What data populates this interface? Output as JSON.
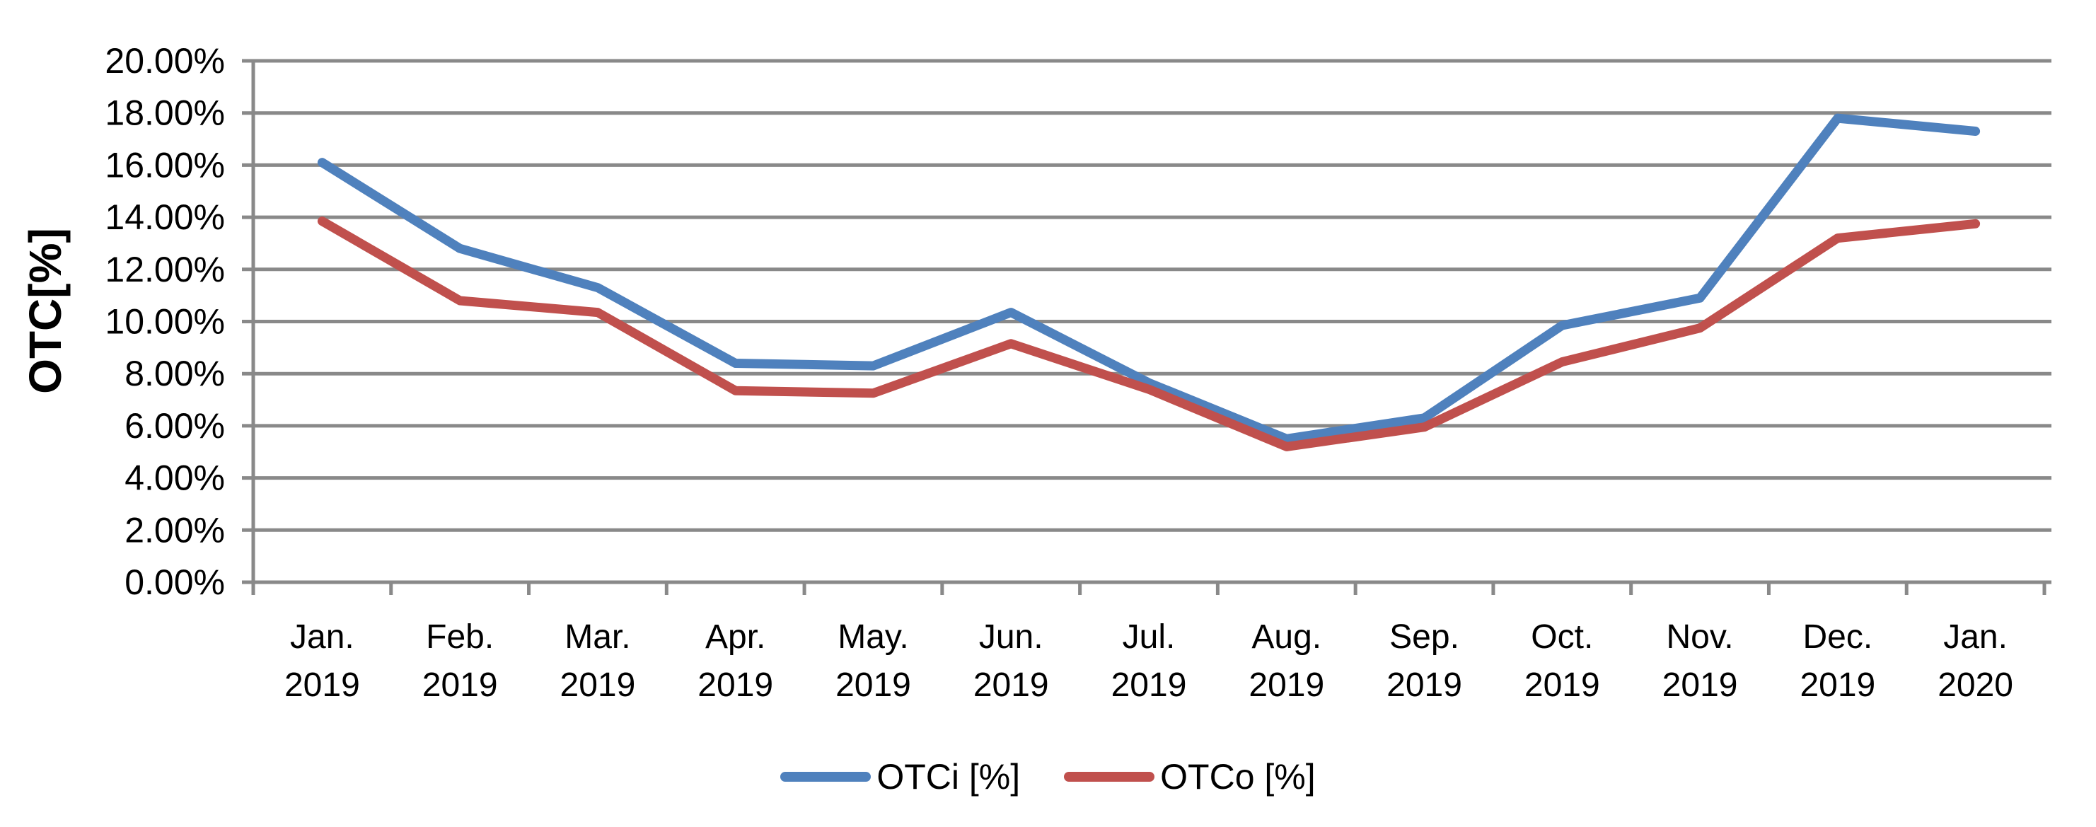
{
  "chart": {
    "background": "#FFFFFF",
    "text_color": "#000000",
    "axis_color": "#898989",
    "gridline_color": "#898989"
  },
  "chart_data": {
    "type": "line",
    "title": "",
    "ylabel": "OTC[%]",
    "xlabel": "",
    "ylim": [
      0,
      20
    ],
    "ytick_step": 2,
    "ytick_decimals": 2,
    "ytick_suffix": "%",
    "grid": true,
    "legend_position": "bottom",
    "categories": [
      "Jan. 2019",
      "Feb. 2019",
      "Mar. 2019",
      "Apr. 2019",
      "May. 2019",
      "Jun. 2019",
      "Jul. 2019",
      "Aug. 2019",
      "Sep. 2019",
      "Oct. 2019",
      "Nov. 2019",
      "Dec. 2019",
      "Jan. 2020"
    ],
    "category_line1": [
      "Jan.",
      "Feb.",
      "Mar.",
      "Apr.",
      "May.",
      "Jun.",
      "Jul.",
      "Aug.",
      "Sep.",
      "Oct.",
      "Nov.",
      "Dec.",
      "Jan."
    ],
    "category_line2": [
      "2019",
      "2019",
      "2019",
      "2019",
      "2019",
      "2019",
      "2019",
      "2019",
      "2019",
      "2019",
      "2019",
      "2019",
      "2020"
    ],
    "series": [
      {
        "name": "OTCi [%]",
        "color": "#4F81BD",
        "values": [
          16.1,
          12.8,
          11.3,
          8.4,
          8.3,
          10.35,
          7.65,
          5.5,
          6.3,
          9.85,
          10.9,
          17.8,
          17.3
        ]
      },
      {
        "name": "OTCo [%]",
        "color": "#C0504D",
        "values": [
          13.85,
          10.8,
          10.35,
          7.35,
          7.25,
          9.15,
          7.4,
          5.2,
          5.95,
          8.45,
          9.75,
          13.2,
          13.75
        ]
      }
    ]
  }
}
